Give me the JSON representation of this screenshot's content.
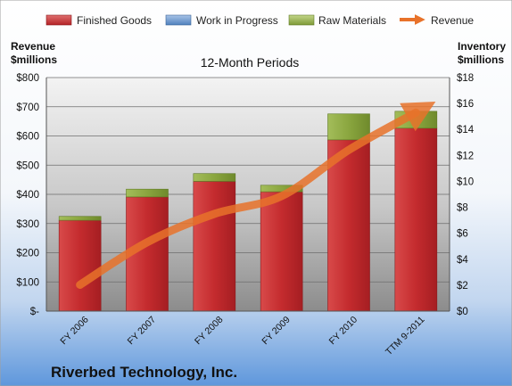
{
  "chart_data": {
    "type": "bar",
    "subtitle": "12-Month Periods",
    "company": "Riverbed Technology, Inc.",
    "categories": [
      "FY 2006",
      "FY 2007",
      "FY 2008",
      "FY 2009",
      "FY 2010",
      "TTM 9-2011"
    ],
    "left_axis": {
      "label_line1": "Revenue",
      "label_line2": "$millions",
      "ylim": [
        0,
        800
      ],
      "ticks": [
        0,
        100,
        200,
        300,
        400,
        500,
        600,
        700,
        800
      ],
      "tick_labels": [
        "$-",
        "$100",
        "$200",
        "$300",
        "$400",
        "$500",
        "$600",
        "$700",
        "$800"
      ]
    },
    "right_axis": {
      "label_line1": "Inventory",
      "label_line2": "$millions",
      "ylim": [
        0,
        18
      ],
      "ticks": [
        0,
        2,
        4,
        6,
        8,
        10,
        12,
        14,
        16,
        18
      ],
      "tick_labels": [
        "$0",
        "$2",
        "$4",
        "$6",
        "$8",
        "$10",
        "$12",
        "$14",
        "$16",
        "$18"
      ]
    },
    "series": [
      {
        "name": "Finished Goods",
        "axis": "right",
        "kind": "bar",
        "color": "#c0282c",
        "values": [
          7.0,
          8.8,
          10.0,
          9.2,
          13.2,
          14.1
        ]
      },
      {
        "name": "Work in Progress",
        "axis": "right",
        "kind": "bar",
        "color": "#4f81bd",
        "values": [
          0,
          0,
          0,
          0,
          0,
          0
        ]
      },
      {
        "name": "Raw Materials",
        "axis": "right",
        "kind": "bar",
        "color": "#8faa45",
        "values": [
          0.3,
          0.6,
          0.6,
          0.5,
          2.0,
          1.3
        ]
      },
      {
        "name": "Revenue",
        "axis": "left",
        "kind": "line",
        "color": "#e8722a",
        "values": [
          90,
          236,
          333,
          394,
          552,
          680
        ]
      }
    ],
    "legend_position": "top",
    "grid": true
  }
}
